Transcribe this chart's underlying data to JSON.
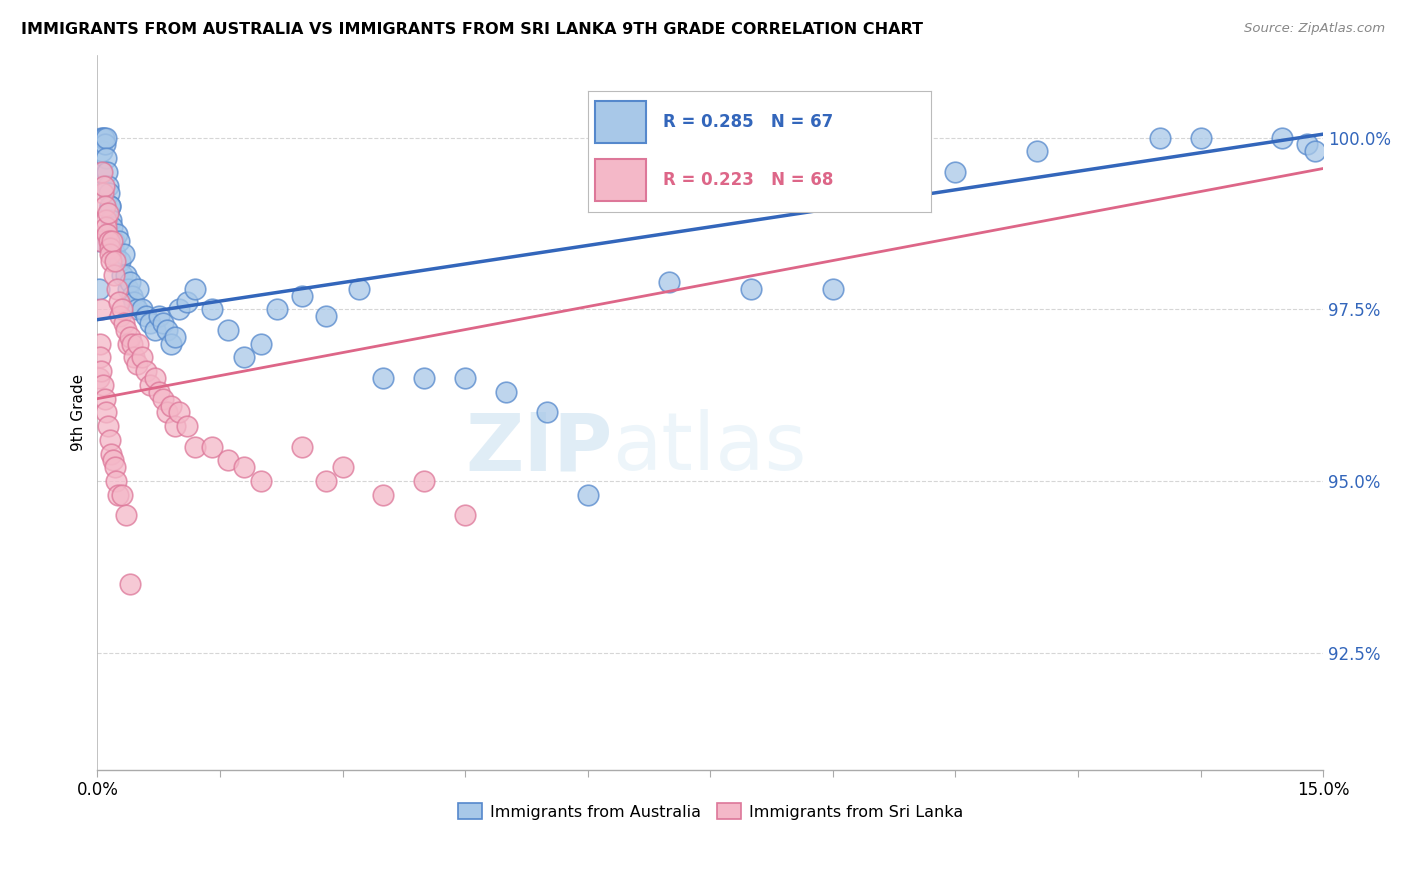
{
  "title": "IMMIGRANTS FROM AUSTRALIA VS IMMIGRANTS FROM SRI LANKA 9TH GRADE CORRELATION CHART",
  "source": "Source: ZipAtlas.com",
  "ylabel": "9th Grade",
  "xmin": 0.0,
  "xmax": 15.0,
  "ymin": 90.8,
  "ymax": 101.2,
  "blue_R": 0.285,
  "blue_N": 67,
  "pink_R": 0.223,
  "pink_N": 68,
  "blue_color": "#a8c8e8",
  "pink_color": "#f4b8c8",
  "blue_edge_color": "#5588cc",
  "pink_edge_color": "#dd7799",
  "blue_line_color": "#3366bb",
  "pink_line_color": "#dd6688",
  "legend_label_blue": "Immigrants from Australia",
  "legend_label_pink": "Immigrants from Sri Lanka",
  "watermark_zip": "ZIP",
  "watermark_atlas": "atlas",
  "blue_x": [
    0.02,
    0.03,
    0.04,
    0.05,
    0.06,
    0.07,
    0.08,
    0.09,
    0.1,
    0.11,
    0.12,
    0.13,
    0.14,
    0.15,
    0.16,
    0.17,
    0.18,
    0.2,
    0.22,
    0.24,
    0.26,
    0.28,
    0.3,
    0.32,
    0.35,
    0.38,
    0.4,
    0.42,
    0.45,
    0.48,
    0.5,
    0.55,
    0.6,
    0.65,
    0.7,
    0.75,
    0.8,
    0.85,
    0.9,
    0.95,
    1.0,
    1.1,
    1.2,
    1.4,
    1.6,
    1.8,
    2.0,
    2.2,
    2.5,
    2.8,
    3.2,
    3.5,
    4.0,
    4.5,
    5.0,
    5.5,
    6.0,
    7.0,
    8.0,
    9.0,
    10.5,
    11.5,
    13.0,
    13.5,
    14.5,
    14.8,
    14.9
  ],
  "blue_y": [
    97.8,
    98.5,
    99.5,
    100.0,
    99.8,
    100.0,
    100.0,
    99.9,
    100.0,
    99.7,
    99.5,
    99.3,
    99.2,
    99.0,
    99.0,
    98.8,
    98.7,
    98.5,
    98.3,
    98.6,
    98.5,
    98.2,
    98.0,
    98.3,
    98.0,
    97.8,
    97.9,
    97.7,
    97.6,
    97.5,
    97.8,
    97.5,
    97.4,
    97.3,
    97.2,
    97.4,
    97.3,
    97.2,
    97.0,
    97.1,
    97.5,
    97.6,
    97.8,
    97.5,
    97.2,
    96.8,
    97.0,
    97.5,
    97.7,
    97.4,
    97.8,
    96.5,
    96.5,
    96.5,
    96.3,
    96.0,
    94.8,
    97.9,
    97.8,
    97.8,
    99.5,
    99.8,
    100.0,
    100.0,
    100.0,
    99.9,
    99.8
  ],
  "pink_x": [
    0.02,
    0.03,
    0.04,
    0.05,
    0.06,
    0.07,
    0.08,
    0.09,
    0.1,
    0.11,
    0.12,
    0.13,
    0.14,
    0.15,
    0.16,
    0.17,
    0.18,
    0.2,
    0.22,
    0.24,
    0.26,
    0.28,
    0.3,
    0.32,
    0.35,
    0.38,
    0.4,
    0.42,
    0.45,
    0.48,
    0.5,
    0.55,
    0.6,
    0.65,
    0.7,
    0.75,
    0.8,
    0.85,
    0.9,
    0.95,
    1.0,
    1.1,
    1.2,
    1.4,
    1.6,
    1.8,
    2.0,
    2.5,
    3.0,
    3.5,
    4.0,
    4.5,
    0.03,
    0.05,
    0.07,
    0.09,
    0.11,
    0.13,
    0.15,
    0.17,
    0.19,
    0.21,
    0.23,
    0.25,
    0.3,
    0.35,
    0.4,
    2.8
  ],
  "pink_y": [
    96.5,
    97.0,
    97.5,
    98.5,
    99.5,
    99.2,
    99.3,
    99.0,
    98.8,
    98.7,
    98.6,
    98.9,
    98.5,
    98.4,
    98.3,
    98.2,
    98.5,
    98.0,
    98.2,
    97.8,
    97.6,
    97.4,
    97.5,
    97.3,
    97.2,
    97.0,
    97.1,
    97.0,
    96.8,
    96.7,
    97.0,
    96.8,
    96.6,
    96.4,
    96.5,
    96.3,
    96.2,
    96.0,
    96.1,
    95.8,
    96.0,
    95.8,
    95.5,
    95.5,
    95.3,
    95.2,
    95.0,
    95.5,
    95.2,
    94.8,
    95.0,
    94.5,
    96.8,
    96.6,
    96.4,
    96.2,
    96.0,
    95.8,
    95.6,
    95.4,
    95.3,
    95.2,
    95.0,
    94.8,
    94.8,
    94.5,
    93.5,
    95.0
  ],
  "ytick_vals": [
    92.5,
    95.0,
    97.5,
    100.0
  ],
  "xtick_positions": [
    0.0,
    1.5,
    3.0,
    4.5,
    6.0,
    7.5,
    9.0,
    10.5,
    12.0,
    13.5,
    15.0
  ]
}
